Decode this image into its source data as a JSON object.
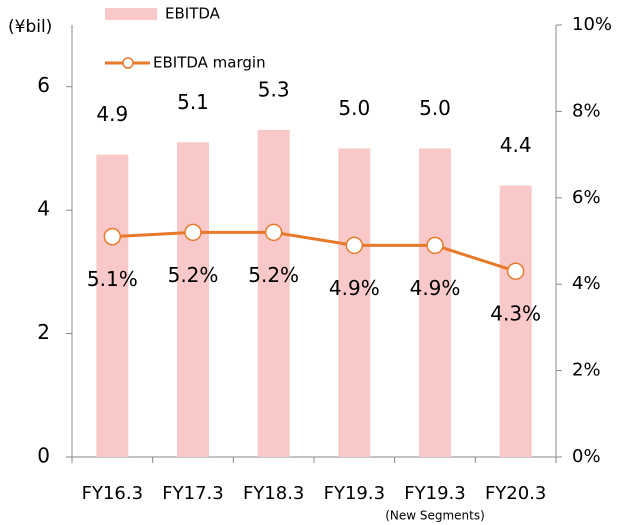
{
  "chart_data": {
    "type": "bar",
    "y_label": "(¥bil)",
    "categories": [
      "FY16.3",
      "FY17.3",
      "FY18.3",
      "FY19.3",
      "FY19.3",
      "FY20.3"
    ],
    "x_note": "(New Segments)",
    "series": [
      {
        "name": "EBITDA",
        "type": "bar",
        "color": "#f8c9c8",
        "values": [
          4.9,
          5.1,
          5.3,
          5,
          5,
          4.4
        ],
        "value_labels": [
          "4.9",
          "5.1",
          "5.3",
          "5.0",
          "5.0",
          "4.4"
        ]
      },
      {
        "name": "EBITDA margin",
        "type": "line",
        "axis": "y2",
        "color": "#e8792a",
        "values": [
          5.1,
          5.2,
          5.2,
          4.9,
          4.9,
          4.3
        ],
        "value_labels": [
          "5.1%",
          "5.2%",
          "5.2%",
          "4.9%",
          "4.9%",
          "4.3%"
        ]
      }
    ],
    "ylim": [
      0,
      7
    ],
    "yticks": [
      0,
      2,
      4,
      6
    ],
    "y2lim": [
      0,
      10
    ],
    "y2ticks": [
      {
        "value": 0,
        "label": "0%"
      },
      {
        "value": 2,
        "label": "2%"
      },
      {
        "value": 4,
        "label": "4%"
      },
      {
        "value": 6,
        "label": "6%"
      },
      {
        "value": 8,
        "label": "8%"
      },
      {
        "value": 10,
        "label": "10%"
      }
    ],
    "legend": "top",
    "grid": false
  }
}
